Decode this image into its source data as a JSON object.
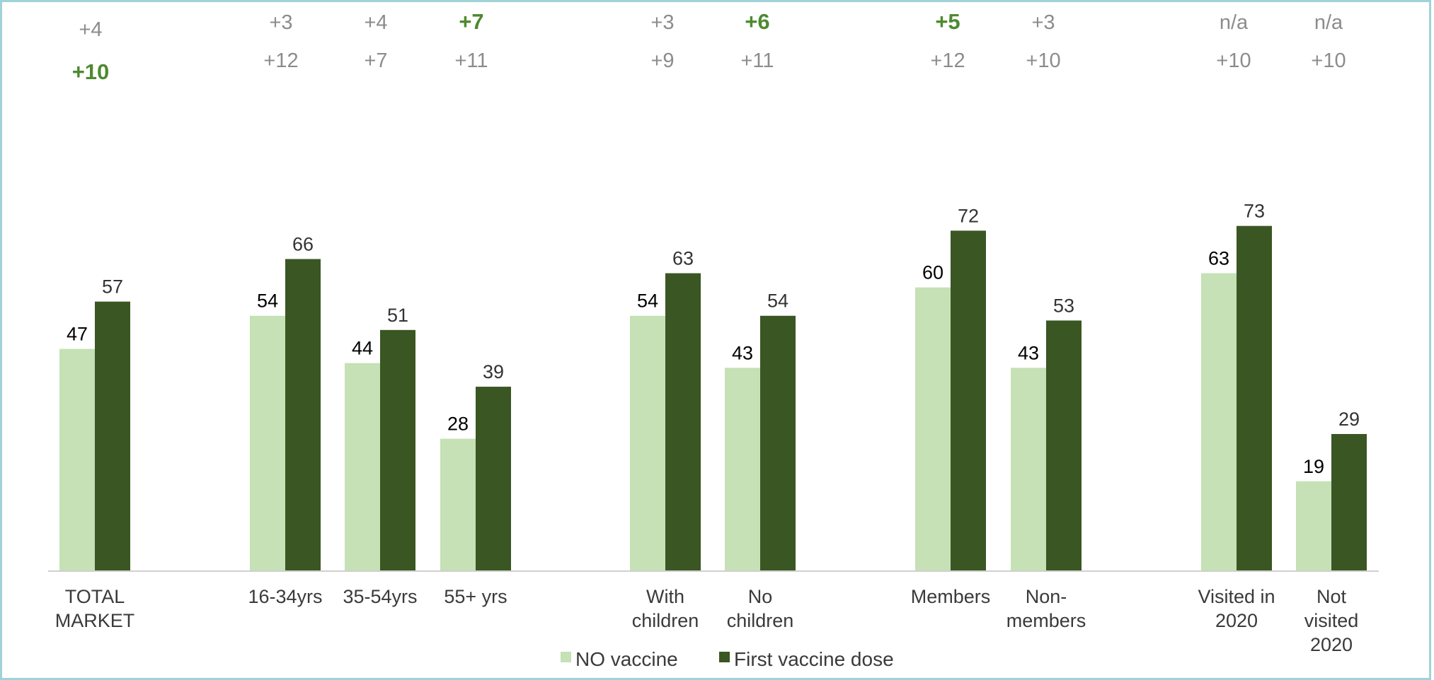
{
  "chart_data": {
    "type": "bar",
    "title": "",
    "xlabel": "",
    "ylabel": "",
    "ylim": [
      0,
      80
    ],
    "grid": false,
    "legend_position": "bottom",
    "colors": {
      "no_vaccine": "#c5e1b5",
      "first_dose": "#3a5623",
      "delta_highlight": "#4e8a30",
      "delta_normal": "#8c8c8c"
    },
    "categories": [
      [
        "TOTAL",
        "MARKET"
      ],
      [
        "16-34yrs"
      ],
      [
        "35-54yrs"
      ],
      [
        "55+ yrs"
      ],
      [
        "With",
        "children"
      ],
      [
        "No",
        "children"
      ],
      [
        "Members"
      ],
      [
        "Non-",
        "members"
      ],
      [
        "Visited in",
        "2020"
      ],
      [
        "Not",
        "visited",
        "2020"
      ]
    ],
    "series": [
      {
        "name": "NO vaccine",
        "values": [
          47,
          54,
          44,
          28,
          54,
          43,
          60,
          43,
          63,
          19
        ]
      },
      {
        "name": "First vaccine dose",
        "values": [
          57,
          66,
          51,
          39,
          63,
          54,
          72,
          53,
          73,
          29
        ]
      }
    ],
    "annotations": {
      "row1": [
        "+4",
        "+3",
        "+4",
        "+7",
        "+3",
        "+6",
        "+5",
        "+3",
        "n/a",
        "n/a"
      ],
      "row1_highlight": [
        false,
        false,
        false,
        true,
        false,
        true,
        true,
        false,
        false,
        false
      ],
      "row2": [
        "+10",
        "+12",
        "+7",
        "+11",
        "+9",
        "+11",
        "+12",
        "+10",
        "+10",
        "+10"
      ],
      "row2_highlight": [
        true,
        false,
        false,
        false,
        false,
        false,
        false,
        false,
        false,
        false
      ]
    }
  }
}
